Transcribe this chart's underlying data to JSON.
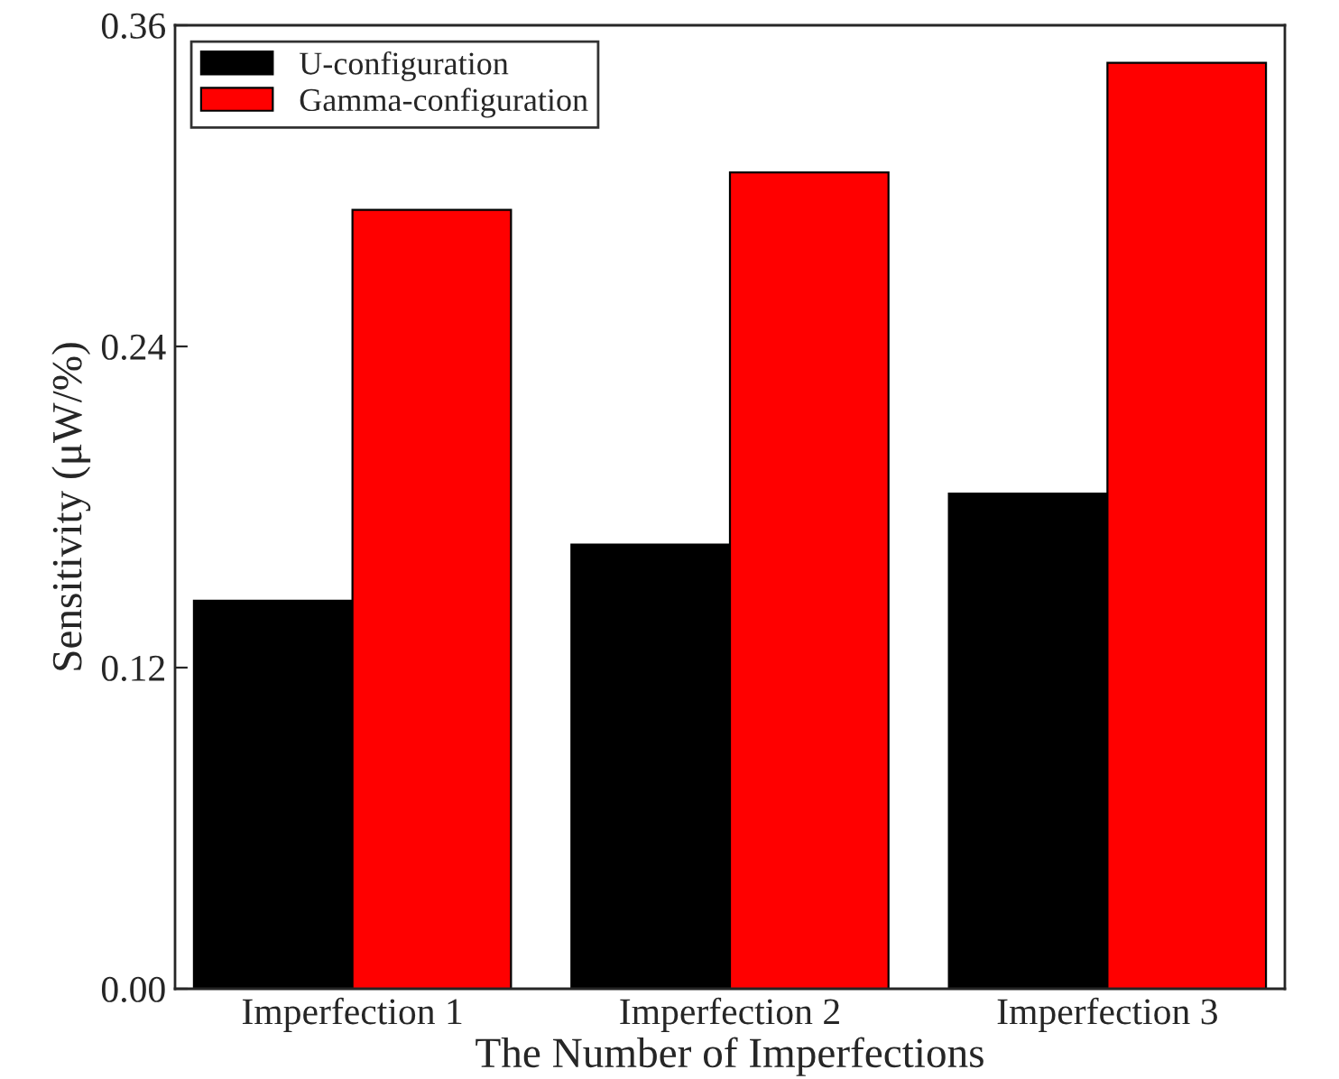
{
  "chart_data": {
    "type": "bar",
    "xlabel": "The Number of Imperfections",
    "ylabel": "Sensitivity (μW/%)",
    "categories": [
      "Imperfection 1",
      "Imperfection 2",
      "Imperfection 3"
    ],
    "series": [
      {
        "name": "U-configuration",
        "color": "#000000",
        "values": [
          0.145,
          0.166,
          0.185
        ]
      },
      {
        "name": "Gamma-configuration",
        "color": "#ff0000",
        "values": [
          0.291,
          0.305,
          0.346
        ]
      }
    ],
    "ylim": [
      0,
      0.36
    ],
    "yticks": [
      {
        "value": 0,
        "label": "0.00"
      },
      0.12,
      0.24,
      0.36
    ],
    "legend": "top left",
    "grid": false
  }
}
